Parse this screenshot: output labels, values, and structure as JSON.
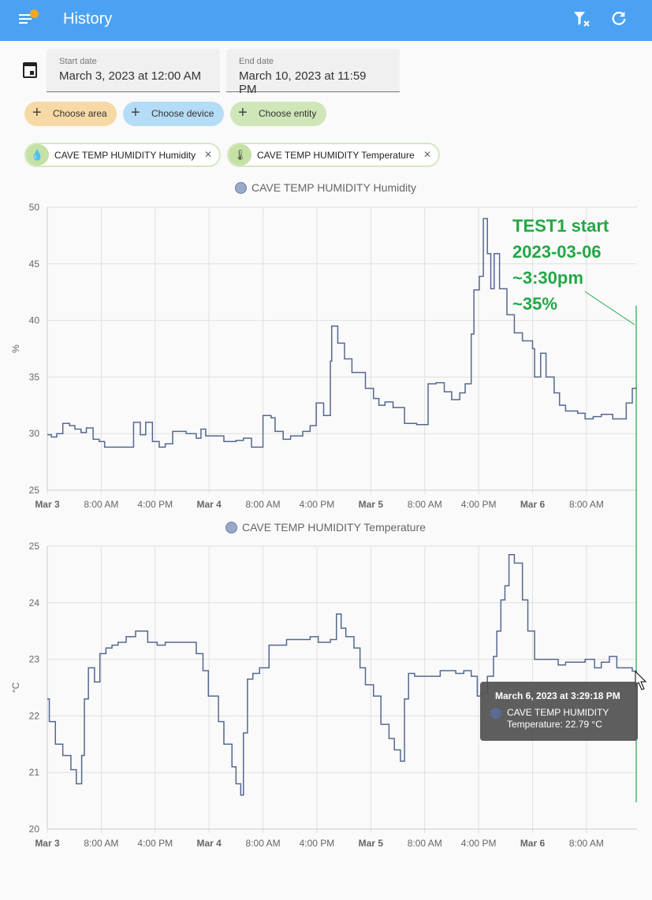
{
  "header": {
    "title": "History",
    "menu_icon": "menu-icon",
    "filter_clear_icon": "filter-remove-icon",
    "refresh_icon": "refresh-icon",
    "accent": "#4ca2f2"
  },
  "dates": {
    "start_label": "Start date",
    "start_value": "March 3, 2023 at 12:00 AM",
    "end_label": "End date",
    "end_value": "March 10, 2023 at 11:59 PM"
  },
  "pickers": [
    {
      "label": "Choose area",
      "color": "#f6d9a4"
    },
    {
      "label": "Choose device",
      "color": "#b5dcf6"
    },
    {
      "label": "Choose entity",
      "color": "#cfe6b8"
    }
  ],
  "entities": [
    {
      "label": "CAVE TEMP HUMIDITY Humidity",
      "icon": "water-percent-icon"
    },
    {
      "label": "CAVE TEMP HUMIDITY Temperature",
      "icon": "thermometer-icon"
    }
  ],
  "annotation": {
    "lines": [
      "TEST1 start",
      "2023-03-06",
      "~3:30pm",
      "~35%"
    ],
    "color": "#22a845"
  },
  "tooltip": {
    "title": "March 6, 2023 at 3:29:18 PM",
    "series": "CAVE TEMP HUMIDITY",
    "value": "Temperature: 22.79 °C"
  },
  "chart_data": [
    {
      "type": "line",
      "title": "CAVE TEMP HUMIDITY Humidity",
      "ylabel": "%",
      "ylim": [
        25,
        50
      ],
      "yticks": [
        25,
        30,
        35,
        40,
        45,
        50
      ],
      "xlim_hours": [
        0,
        87.5
      ],
      "xticks": [
        {
          "h": 0,
          "label": "Mar 3",
          "bold": true
        },
        {
          "h": 8,
          "label": "8:00 AM"
        },
        {
          "h": 16,
          "label": "4:00 PM"
        },
        {
          "h": 24,
          "label": "Mar 4",
          "bold": true
        },
        {
          "h": 32,
          "label": "8:00 AM"
        },
        {
          "h": 40,
          "label": "4:00 PM"
        },
        {
          "h": 48,
          "label": "Mar 5",
          "bold": true
        },
        {
          "h": 56,
          "label": "8:00 AM"
        },
        {
          "h": 64,
          "label": "4:00 PM"
        },
        {
          "h": 72,
          "label": "Mar 6",
          "bold": true
        },
        {
          "h": 80,
          "label": "8:00 AM"
        }
      ],
      "points": [
        [
          0,
          29.9
        ],
        [
          0.6,
          29.7
        ],
        [
          1.4,
          30
        ],
        [
          2.3,
          30.9
        ],
        [
          3.3,
          30.7
        ],
        [
          4.1,
          30.4
        ],
        [
          5,
          30.1
        ],
        [
          5.8,
          30.5
        ],
        [
          6.8,
          29.5
        ],
        [
          7.7,
          29.3
        ],
        [
          8.5,
          28.8
        ],
        [
          12.8,
          31
        ],
        [
          13.8,
          29.9
        ],
        [
          14.6,
          31
        ],
        [
          15.6,
          29.3
        ],
        [
          16.6,
          28.8
        ],
        [
          17.5,
          29.1
        ],
        [
          18.6,
          30.2
        ],
        [
          20.6,
          30
        ],
        [
          22.1,
          29.6
        ],
        [
          22.8,
          30.4
        ],
        [
          23.5,
          29.8
        ],
        [
          26.2,
          29.3
        ],
        [
          28,
          29.4
        ],
        [
          29.1,
          29.6
        ],
        [
          30.3,
          28.8
        ],
        [
          32,
          31.6
        ],
        [
          33.2,
          31.4
        ],
        [
          33.8,
          30.2
        ],
        [
          35,
          29.5
        ],
        [
          36.1,
          29.8
        ],
        [
          37.9,
          30.2
        ],
        [
          39,
          30.7
        ],
        [
          39.9,
          32.7
        ],
        [
          41,
          31.6
        ],
        [
          42,
          36.4
        ],
        [
          42.2,
          39.5
        ],
        [
          43.1,
          38
        ],
        [
          44.1,
          36.6
        ],
        [
          45.2,
          35.4
        ],
        [
          47.2,
          34
        ],
        [
          48.4,
          33.1
        ],
        [
          49.2,
          32.5
        ],
        [
          50.1,
          32.8
        ],
        [
          51.3,
          32.3
        ],
        [
          53,
          30.9
        ],
        [
          54.8,
          30.8
        ],
        [
          56.5,
          34.4
        ],
        [
          57.7,
          34.5
        ],
        [
          58.9,
          33.7
        ],
        [
          60,
          33
        ],
        [
          61.2,
          33.6
        ],
        [
          62,
          34.4
        ],
        [
          62.9,
          38.8
        ],
        [
          63.3,
          42.7
        ],
        [
          64.1,
          43.9
        ],
        [
          64.7,
          49
        ],
        [
          65.3,
          45.9
        ],
        [
          65.8,
          42.8
        ],
        [
          66.3,
          45.9
        ],
        [
          67.1,
          42.8
        ],
        [
          68.2,
          40.5
        ],
        [
          69.3,
          38.9
        ],
        [
          70.5,
          38.2
        ],
        [
          72,
          37.5
        ],
        [
          72.3,
          35
        ],
        [
          73.2,
          37.1
        ],
        [
          74,
          35
        ],
        [
          75.2,
          33.6
        ],
        [
          76,
          32.5
        ],
        [
          76.9,
          32
        ],
        [
          78.7,
          31.8
        ],
        [
          79.8,
          31.3
        ],
        [
          81,
          31.5
        ],
        [
          82.2,
          31.7
        ],
        [
          83.9,
          31.3
        ],
        [
          85.9,
          32.7
        ],
        [
          86.8,
          34
        ],
        [
          87.5,
          34
        ]
      ]
    },
    {
      "type": "line",
      "title": "CAVE TEMP HUMIDITY Temperature",
      "ylabel": "°C",
      "ylim": [
        20,
        25
      ],
      "yticks": [
        20,
        21,
        22,
        23,
        24,
        25
      ],
      "xlim_hours": [
        0,
        87.5
      ],
      "xticks": [
        {
          "h": 0,
          "label": "Mar 3",
          "bold": true
        },
        {
          "h": 8,
          "label": "8:00 AM"
        },
        {
          "h": 16,
          "label": "4:00 PM"
        },
        {
          "h": 24,
          "label": "Mar 4",
          "bold": true
        },
        {
          "h": 32,
          "label": "8:00 AM"
        },
        {
          "h": 40,
          "label": "4:00 PM"
        },
        {
          "h": 48,
          "label": "Mar 5",
          "bold": true
        },
        {
          "h": 56,
          "label": "8:00 AM"
        },
        {
          "h": 64,
          "label": "4:00 PM"
        },
        {
          "h": 72,
          "label": "Mar 6",
          "bold": true
        },
        {
          "h": 80,
          "label": "8:00 AM"
        }
      ],
      "points": [
        [
          0,
          22.3
        ],
        [
          0.3,
          21.9
        ],
        [
          1.2,
          21.5
        ],
        [
          2.3,
          21.3
        ],
        [
          3.5,
          21.05
        ],
        [
          4.3,
          20.8
        ],
        [
          5.1,
          21.3
        ],
        [
          5.5,
          22.3
        ],
        [
          6.1,
          22.85
        ],
        [
          7,
          22.6
        ],
        [
          7.8,
          23.1
        ],
        [
          8.7,
          23.2
        ],
        [
          9.6,
          23.25
        ],
        [
          10.5,
          23.3
        ],
        [
          11.7,
          23.4
        ],
        [
          13.1,
          23.5
        ],
        [
          14,
          23.5
        ],
        [
          14.9,
          23.3
        ],
        [
          16.3,
          23.25
        ],
        [
          17.5,
          23.3
        ],
        [
          18.6,
          23.3
        ],
        [
          20.5,
          23.3
        ],
        [
          22.1,
          23.1
        ],
        [
          23.1,
          22.8
        ],
        [
          23.9,
          22.35
        ],
        [
          25.4,
          21.9
        ],
        [
          26.2,
          21.5
        ],
        [
          27.4,
          21.1
        ],
        [
          28,
          20.8
        ],
        [
          28.7,
          20.6
        ],
        [
          29.1,
          21.7
        ],
        [
          29.7,
          22.65
        ],
        [
          30.5,
          22.75
        ],
        [
          31.5,
          22.85
        ],
        [
          32.9,
          23.25
        ],
        [
          34.4,
          23.25
        ],
        [
          35.5,
          23.35
        ],
        [
          36.7,
          23.35
        ],
        [
          37.6,
          23.35
        ],
        [
          39,
          23.4
        ],
        [
          40.2,
          23.3
        ],
        [
          41,
          23.3
        ],
        [
          42,
          23.35
        ],
        [
          42.9,
          23.8
        ],
        [
          43.6,
          23.55
        ],
        [
          44.3,
          23.4
        ],
        [
          45.5,
          23.2
        ],
        [
          46.4,
          22.85
        ],
        [
          47.2,
          22.55
        ],
        [
          48.4,
          22.35
        ],
        [
          49.5,
          21.85
        ],
        [
          50.7,
          21.6
        ],
        [
          51.5,
          21.4
        ],
        [
          52.4,
          21.2
        ],
        [
          53,
          22.3
        ],
        [
          53.6,
          22.75
        ],
        [
          54.5,
          22.7
        ],
        [
          56.5,
          22.7
        ],
        [
          58.3,
          22.8
        ],
        [
          60.6,
          22.75
        ],
        [
          61.8,
          22.8
        ],
        [
          62.9,
          22.7
        ],
        [
          63.8,
          22.35
        ],
        [
          64.3,
          22.4
        ],
        [
          65.3,
          22.7
        ],
        [
          66.2,
          23.05
        ],
        [
          66.7,
          23.5
        ],
        [
          67.3,
          24.05
        ],
        [
          67.9,
          24.3
        ],
        [
          68.5,
          24.85
        ],
        [
          69.3,
          24.7
        ],
        [
          70.5,
          24.05
        ],
        [
          71.3,
          23.5
        ],
        [
          72.3,
          23
        ],
        [
          74,
          23
        ],
        [
          75.8,
          22.9
        ],
        [
          76.9,
          22.95
        ],
        [
          78.7,
          22.95
        ],
        [
          79.8,
          23
        ],
        [
          81.2,
          22.85
        ],
        [
          82.2,
          22.95
        ],
        [
          83.4,
          23.05
        ],
        [
          84.5,
          22.85
        ],
        [
          85.7,
          22.85
        ],
        [
          86.8,
          22.79
        ],
        [
          87.5,
          22.79
        ]
      ]
    }
  ]
}
